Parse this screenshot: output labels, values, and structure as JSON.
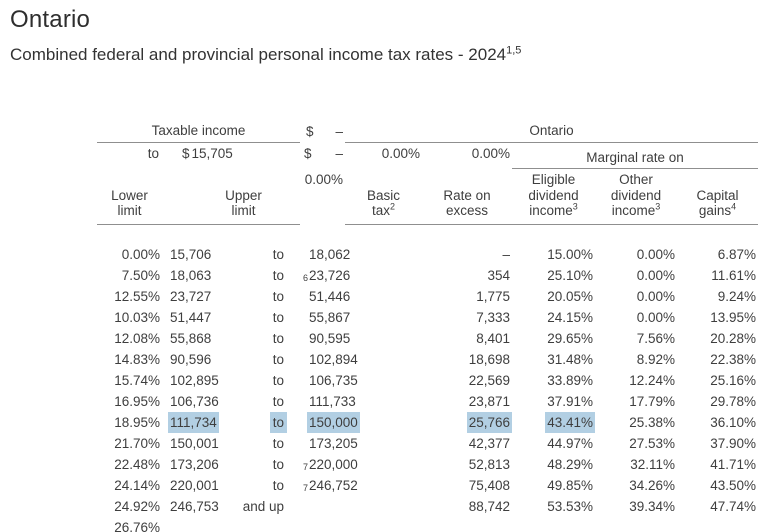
{
  "page": {
    "title": "Ontario",
    "subtitle": "Combined federal and provincial personal income tax rates - 2024",
    "subtitle_sup": "1,5"
  },
  "table": {
    "highlight_color": "#b2cfe3",
    "groups": {
      "taxable_income": "Taxable income",
      "province": "Ontario",
      "marginal_rate": "Marginal rate on"
    },
    "headers": {
      "lower": "Lower\nlimit",
      "upper": "Upper\nlimit",
      "basic": "Basic\ntax",
      "basic_sup": "2",
      "rate": "Rate on\nexcess",
      "eligible": "Eligible\ndividend\nincome",
      "eligible_sup": "3",
      "other": "Other\ndividend\nincome",
      "other_sup": "3",
      "capital": "Capital\ngains",
      "capital_sup": "4"
    },
    "rows": [
      {
        "lower_prefix": "$",
        "lower": "–",
        "to": "to",
        "upper_prefix": "$",
        "upper": "15,705",
        "upper_sup": "",
        "basic_prefix": "$",
        "basic": "–",
        "rate": "0.00%",
        "eligible": "0.00%",
        "other": "0.00%",
        "capital": "0.00%",
        "highlighted": false
      },
      {
        "lower_prefix": "",
        "lower": "15,706",
        "to": "to",
        "upper_prefix": "",
        "upper": "18,062",
        "upper_sup": "",
        "basic_prefix": "",
        "basic": "–",
        "rate": "15.00%",
        "eligible": "0.00%",
        "other": "6.87%",
        "capital": "7.50%",
        "highlighted": false
      },
      {
        "lower_prefix": "",
        "lower": "18,063",
        "to": "to",
        "upper_prefix": "",
        "upper": "23,726",
        "upper_sup": "6",
        "basic_prefix": "",
        "basic": "354",
        "rate": "25.10%",
        "eligible": "0.00%",
        "other": "11.61%",
        "capital": "12.55%",
        "highlighted": false
      },
      {
        "lower_prefix": "",
        "lower": "23,727",
        "to": "to",
        "upper_prefix": "",
        "upper": "51,446",
        "upper_sup": "",
        "basic_prefix": "",
        "basic": "1,775",
        "rate": "20.05%",
        "eligible": "0.00%",
        "other": "9.24%",
        "capital": "10.03%",
        "highlighted": false
      },
      {
        "lower_prefix": "",
        "lower": "51,447",
        "to": "to",
        "upper_prefix": "",
        "upper": "55,867",
        "upper_sup": "",
        "basic_prefix": "",
        "basic": "7,333",
        "rate": "24.15%",
        "eligible": "0.00%",
        "other": "13.95%",
        "capital": "12.08%",
        "highlighted": false
      },
      {
        "lower_prefix": "",
        "lower": "55,868",
        "to": "to",
        "upper_prefix": "",
        "upper": "90,595",
        "upper_sup": "",
        "basic_prefix": "",
        "basic": "8,401",
        "rate": "29.65%",
        "eligible": "7.56%",
        "other": "20.28%",
        "capital": "14.83%",
        "highlighted": false
      },
      {
        "lower_prefix": "",
        "lower": "90,596",
        "to": "to",
        "upper_prefix": "",
        "upper": "102,894",
        "upper_sup": "",
        "basic_prefix": "",
        "basic": "18,698",
        "rate": "31.48%",
        "eligible": "8.92%",
        "other": "22.38%",
        "capital": "15.74%",
        "highlighted": false
      },
      {
        "lower_prefix": "",
        "lower": "102,895",
        "to": "to",
        "upper_prefix": "",
        "upper": "106,735",
        "upper_sup": "",
        "basic_prefix": "",
        "basic": "22,569",
        "rate": "33.89%",
        "eligible": "12.24%",
        "other": "25.16%",
        "capital": "16.95%",
        "highlighted": false
      },
      {
        "lower_prefix": "",
        "lower": "106,736",
        "to": "to",
        "upper_prefix": "",
        "upper": "111,733",
        "upper_sup": "",
        "basic_prefix": "",
        "basic": "23,871",
        "rate": "37.91%",
        "eligible": "17.79%",
        "other": "29.78%",
        "capital": "18.95%",
        "highlighted": false
      },
      {
        "lower_prefix": "",
        "lower": "111,734",
        "to": "to",
        "upper_prefix": "",
        "upper": "150,000",
        "upper_sup": "",
        "basic_prefix": "",
        "basic": "25,766",
        "rate": "43.41%",
        "eligible": "25.38%",
        "other": "36.10%",
        "capital": "21.70%",
        "highlighted": true
      },
      {
        "lower_prefix": "",
        "lower": "150,001",
        "to": "to",
        "upper_prefix": "",
        "upper": "173,205",
        "upper_sup": "",
        "basic_prefix": "",
        "basic": "42,377",
        "rate": "44.97%",
        "eligible": "27.53%",
        "other": "37.90%",
        "capital": "22.48%",
        "highlighted": false
      },
      {
        "lower_prefix": "",
        "lower": "173,206",
        "to": "to",
        "upper_prefix": "",
        "upper": "220,000",
        "upper_sup": "7",
        "basic_prefix": "",
        "basic": "52,813",
        "rate": "48.29%",
        "eligible": "32.11%",
        "other": "41.71%",
        "capital": "24.14%",
        "highlighted": false
      },
      {
        "lower_prefix": "",
        "lower": "220,001",
        "to": "to",
        "upper_prefix": "",
        "upper": "246,752",
        "upper_sup": "7",
        "basic_prefix": "",
        "basic": "75,408",
        "rate": "49.85%",
        "eligible": "34.26%",
        "other": "43.50%",
        "capital": "24.92%",
        "highlighted": false
      },
      {
        "lower_prefix": "",
        "lower": "246,753",
        "to": "and up",
        "upper_prefix": "",
        "upper": "",
        "upper_sup": "",
        "basic_prefix": "",
        "basic": "88,742",
        "rate": "53.53%",
        "eligible": "39.34%",
        "other": "47.74%",
        "capital": "26.76%",
        "highlighted": false
      }
    ]
  }
}
